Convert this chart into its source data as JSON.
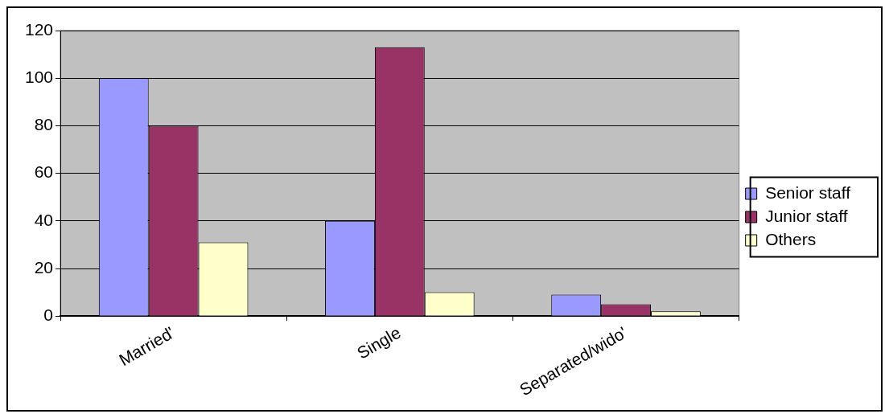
{
  "chart_data": {
    "type": "bar",
    "categories": [
      "Married'",
      "Single",
      "Separated/wido'"
    ],
    "series": [
      {
        "name": "Senior staff",
        "color": "#9999ff",
        "values": [
          100,
          40,
          9
        ]
      },
      {
        "name": "Junior staff",
        "color": "#993366",
        "values": [
          80,
          113,
          5
        ]
      },
      {
        "name": "Others",
        "color": "#ffffcc",
        "values": [
          31,
          10,
          2
        ]
      }
    ],
    "ylim": [
      0,
      120
    ],
    "yticks": [
      0,
      20,
      40,
      60,
      80,
      100,
      120
    ],
    "grid": "y",
    "legend": "right"
  }
}
